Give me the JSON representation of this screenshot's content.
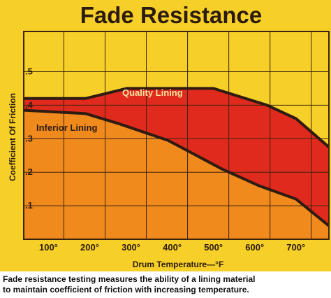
{
  "chart_data": {
    "type": "area",
    "title": "Fade Resistance",
    "xlabel": "Drum Temperature—°F",
    "ylabel": "Coefficient Of Friction",
    "x_tick_labels": [
      "100°",
      "200°",
      "300°",
      "400°",
      "500°",
      "600°",
      "700°"
    ],
    "y_tick_labels": [
      ".1",
      ".2",
      ".3",
      ".4",
      ".5"
    ],
    "x_ticks": [
      100,
      200,
      300,
      400,
      500,
      600,
      700
    ],
    "y_ticks": [
      0.1,
      0.2,
      0.3,
      0.4,
      0.5
    ],
    "xlim": [
      40,
      780
    ],
    "ylim": [
      0,
      0.62
    ],
    "grid": true,
    "series": [
      {
        "name": "Quality Lining",
        "x": [
          40,
          190,
          290,
          500,
          630,
          700,
          780
        ],
        "y": [
          0.42,
          0.42,
          0.45,
          0.45,
          0.4,
          0.36,
          0.275
        ]
      },
      {
        "name": "Inferior Lining",
        "x": [
          40,
          190,
          270,
          390,
          520,
          610,
          700,
          780
        ],
        "y": [
          0.385,
          0.375,
          0.345,
          0.295,
          0.21,
          0.16,
          0.12,
          0.04
        ]
      }
    ],
    "caption": [
      "Fade resistance testing measures the ability of a lining material",
      "to maintain coefficient of friction with increasing temperature."
    ]
  },
  "colors": {
    "background": "#f6cf28",
    "panel_border": "#3a2410",
    "grid": "#3a2410",
    "quality_fill": "#e02a1e",
    "inferior_fill": "#f08a1c",
    "curve": "#2e1b12",
    "quality_label": "#f7e6a0",
    "inferior_label": "#2e1b12"
  }
}
